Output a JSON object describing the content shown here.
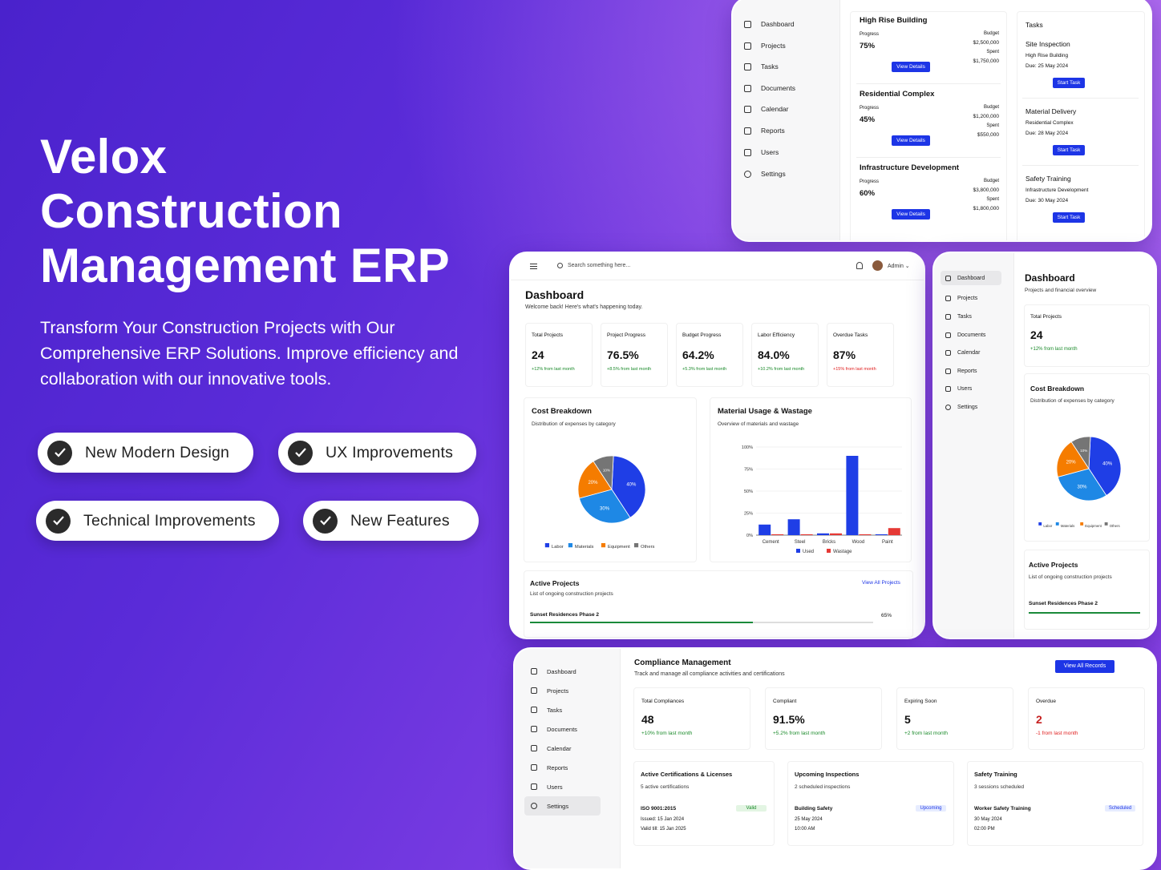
{
  "hero": {
    "title_lines": [
      "Velox",
      "Construction",
      "Management ERP"
    ],
    "subtitle": "Transform Your Construction Projects with Our Comprehensive ERP Solutions. Improve efficiency and collaboration with our innovative tools.",
    "pills": [
      "New Modern Design",
      "UX Improvements",
      "Technical Improvements",
      "New Features"
    ]
  },
  "nav": [
    "Dashboard",
    "Projects",
    "Tasks",
    "Documents",
    "Calendar",
    "Reports",
    "Users",
    "Settings"
  ],
  "card1": {
    "projects": [
      {
        "name": "High Rise Building",
        "progress_label": "Progress",
        "progress": "75%",
        "budget_label": "Budget",
        "budget": "$2,500,000",
        "spent_label": "Spent",
        "spent": "$1,750,000",
        "button": "View Details"
      },
      {
        "name": "Residential Complex",
        "progress_label": "Progress",
        "progress": "45%",
        "budget_label": "Budget",
        "budget": "$1,200,000",
        "spent_label": "Spent",
        "spent": "$550,000",
        "button": "View Details"
      },
      {
        "name": "Infrastructure Development",
        "progress_label": "Progress",
        "progress": "60%",
        "budget_label": "Budget",
        "budget": "$3,800,000",
        "spent_label": "Spent",
        "spent": "$1,800,000",
        "button": "View Details"
      }
    ],
    "tasks_title": "Tasks",
    "tasks": [
      {
        "name": "Site Inspection",
        "project": "High Rise Building",
        "due": "Due: 25 May 2024",
        "button": "Start Task"
      },
      {
        "name": "Material Delivery",
        "project": "Residential Complex",
        "due": "Due: 28 May 2024",
        "button": "Start Task"
      },
      {
        "name": "Safety Training",
        "project": "Infrastructure Development",
        "due": "Due: 30 May 2024",
        "button": "Start Task"
      }
    ]
  },
  "card2": {
    "search_placeholder": "Search something here...",
    "user": "Admin",
    "title": "Dashboard",
    "welcome": "Welcome back! Here's what's happening today.",
    "stats": [
      {
        "label": "Total Projects",
        "value": "24",
        "change": "+12% from last month",
        "color": "g"
      },
      {
        "label": "Project Progress",
        "value": "76.5%",
        "change": "+8.5% from last month",
        "color": "g"
      },
      {
        "label": "Budget Progress",
        "value": "64.2%",
        "change": "+5.3% from last month",
        "color": "g"
      },
      {
        "label": "Labor Efficiency",
        "value": "84.0%",
        "change": "+10.2% from last month",
        "color": "g"
      },
      {
        "label": "Overdue Tasks",
        "value": "87%",
        "change": "+15% from last month",
        "color": "r"
      }
    ],
    "cost": {
      "title": "Cost Breakdown",
      "subtitle": "Distribution of expenses by category"
    },
    "material": {
      "title": "Material Usage & Wastage",
      "subtitle": "Overview of materials and wastage"
    },
    "active": {
      "title": "Active Projects",
      "subtitle": "List of ongoing construction projects",
      "link": "View All Projects",
      "project": "Sunset Residences Phase 2",
      "progress": "65%",
      "fill": 0.65
    }
  },
  "card3": {
    "title": "Dashboard",
    "subtitle": "Projects and financial overview",
    "stat_label": "Total Projects",
    "stat_value": "24",
    "stat_change": "+12% from last month",
    "cost_title": "Cost Breakdown",
    "cost_subtitle": "Distribution of expenses by category",
    "active_title": "Active Projects",
    "active_subtitle": "List of ongoing construction projects",
    "active_project": "Sunset Residences Phase 2"
  },
  "card4": {
    "title": "Compliance Management",
    "subtitle": "Track and manage all compliance activities and certifications",
    "button": "View All Records",
    "stats": [
      {
        "label": "Total Compliances",
        "value": "48",
        "change": "+10% from last month",
        "color": "g"
      },
      {
        "label": "Compliant",
        "value": "91.5%",
        "change": "+5.2% from last month",
        "color": "g"
      },
      {
        "label": "Expiring Soon",
        "value": "5",
        "change": "+2 from last month",
        "color": "g"
      },
      {
        "label": "Overdue",
        "value": "2",
        "change": "-1 from last month",
        "color": "r"
      }
    ],
    "panels": [
      {
        "title": "Active Certifications & Licenses",
        "sub": "5 active certifications",
        "item": "ISO 9001:2015",
        "badge": "Valid",
        "l1": "Issued: 15 Jan 2024",
        "l2": "Valid till: 15 Jan 2025"
      },
      {
        "title": "Upcoming Inspections",
        "sub": "2 scheduled inspections",
        "item": "Building Safety",
        "badge": "Upcoming",
        "l1": "25 May 2024",
        "l2": "10:00 AM"
      },
      {
        "title": "Safety Training",
        "sub": "3 sessions scheduled",
        "item": "Worker Safety Training",
        "badge": "Scheduled",
        "l1": "30 May 2024",
        "l2": "02:00 PM"
      }
    ]
  },
  "chart_data": [
    {
      "type": "pie",
      "title": "Cost Breakdown",
      "categories": [
        "Labor",
        "Materials",
        "Equipment",
        "Others"
      ],
      "values": [
        40,
        30,
        20,
        10
      ],
      "slice_labels": [
        "40%",
        "30%",
        "20%",
        "10%"
      ],
      "colors": [
        "#1f3ee6",
        "#1e88e5",
        "#f57c00",
        "#757575"
      ],
      "legend": "bottom"
    },
    {
      "type": "bar",
      "title": "Material Usage & Wastage",
      "categories": [
        "Cement",
        "Steel",
        "Bricks",
        "Wood",
        "Paint"
      ],
      "series": [
        {
          "name": "Used",
          "values": [
            12,
            18,
            2,
            90,
            1
          ],
          "color": "#1f3ee6"
        },
        {
          "name": "Wastage",
          "values": [
            1,
            1,
            2,
            1,
            8
          ],
          "color": "#e53935"
        }
      ],
      "yticks": [
        "0%",
        "25%",
        "50%",
        "75%",
        "100%"
      ],
      "ylim": [
        0,
        100
      ],
      "legend": "bottom"
    }
  ]
}
